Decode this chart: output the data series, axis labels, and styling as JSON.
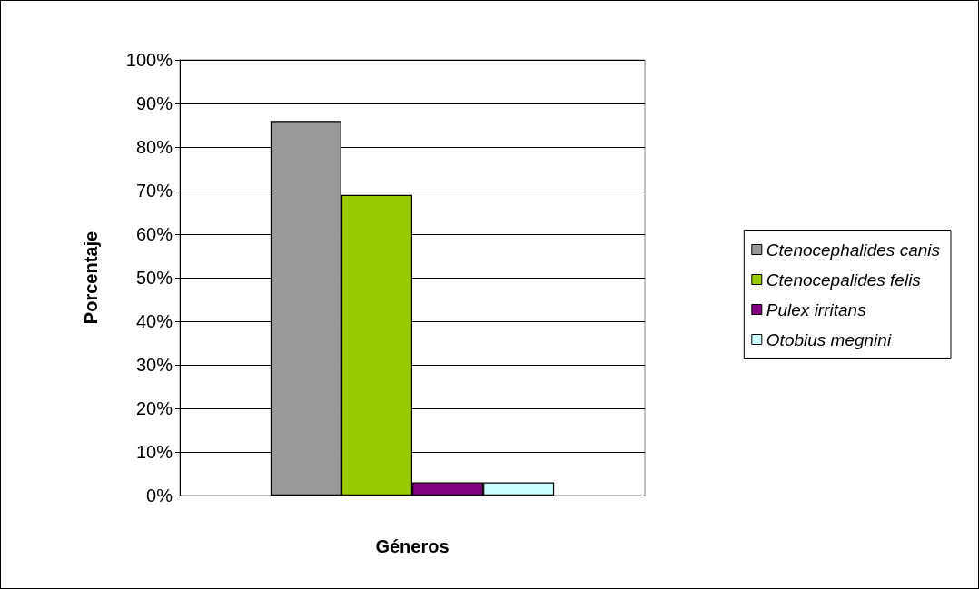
{
  "chart_data": {
    "type": "bar",
    "xlabel": "Géneros",
    "ylabel": "Porcentaje",
    "categories": [
      null
    ],
    "series": [
      {
        "name": "Ctenocephalides canis",
        "color": "#999999",
        "values": [
          86
        ]
      },
      {
        "name": "Ctenocepalides felis",
        "color": "#99cc00",
        "values": [
          69
        ]
      },
      {
        "name": "Pulex irritans",
        "color": "#800080",
        "values": [
          3
        ]
      },
      {
        "name": "Otobius megnini",
        "color": "#ccffff",
        "values": [
          3
        ]
      }
    ],
    "ylim": [
      0,
      100
    ],
    "yticks": [
      {
        "value": 0,
        "label": "0%"
      },
      {
        "value": 10,
        "label": "10%"
      },
      {
        "value": 20,
        "label": "20%"
      },
      {
        "value": 30,
        "label": "30%"
      },
      {
        "value": 40,
        "label": "40%"
      },
      {
        "value": 50,
        "label": "50%"
      },
      {
        "value": 60,
        "label": "60%"
      },
      {
        "value": 70,
        "label": "70%"
      },
      {
        "value": 80,
        "label": "80%"
      },
      {
        "value": 90,
        "label": "90%"
      },
      {
        "value": 100,
        "label": "100%"
      }
    ],
    "grid": "y",
    "legend": "right"
  }
}
